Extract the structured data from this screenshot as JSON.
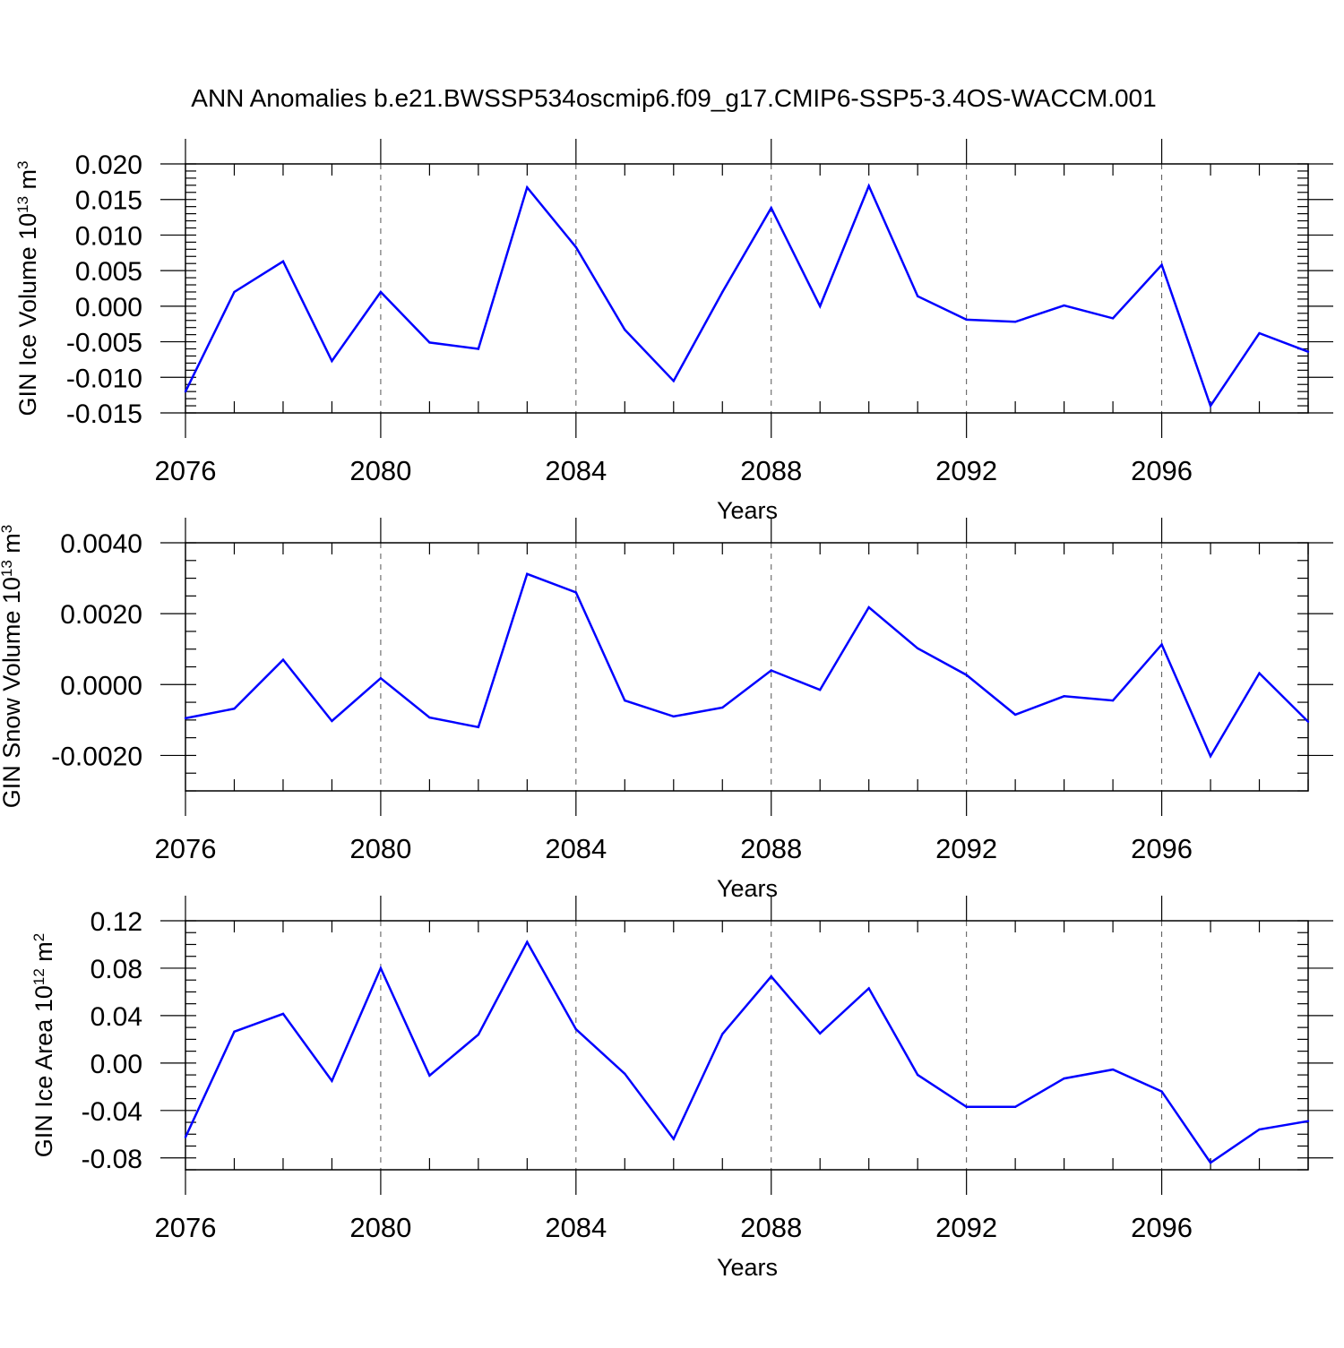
{
  "figure_title": "ANN Anomalies b.e21.BWSSP534oscmip6.f09_g17.CMIP6-SSP5-3.4OS-WACCM.001",
  "chart_data": [
    {
      "type": "line",
      "id": "ice-volume",
      "xlabel": "Years",
      "ylabel": "GIN Ice Volume 10",
      "ylabel_exp1": "13",
      "ylabel_unit": " m",
      "ylabel_exp2": "3",
      "xlim": [
        2076,
        2099
      ],
      "ylim": [
        -0.015,
        0.02
      ],
      "xticks": [
        2076,
        2080,
        2084,
        2088,
        2092,
        2096
      ],
      "xtick_labels": [
        "2076",
        "2080",
        "2084",
        "2088",
        "2092",
        "2096"
      ],
      "yticks": [
        -0.015,
        -0.01,
        -0.005,
        0.0,
        0.005,
        0.01,
        0.015,
        0.02
      ],
      "ytick_labels": [
        "-0.015",
        "-0.010",
        "-0.005",
        "0.000",
        "0.005",
        "0.010",
        "0.015",
        "0.020"
      ],
      "yminor_step": 0.001,
      "grid_x": true,
      "color": "#0000ff",
      "x": [
        2076,
        2077,
        2078,
        2079,
        2080,
        2081,
        2082,
        2083,
        2084,
        2085,
        2086,
        2087,
        2088,
        2089,
        2090,
        2091,
        2092,
        2093,
        2094,
        2095,
        2096,
        2097,
        2098,
        2099
      ],
      "values": [
        -0.012,
        0.002,
        0.0063,
        -0.0077,
        0.002,
        -0.0051,
        -0.006,
        0.0167,
        0.0083,
        -0.0033,
        -0.0105,
        0.002,
        0.0138,
        0.0,
        0.0169,
        0.0014,
        -0.0019,
        -0.0022,
        0.0001,
        -0.0017,
        0.0058,
        -0.014,
        -0.0038,
        -0.0064
      ]
    },
    {
      "type": "line",
      "id": "snow-volume",
      "xlabel": "Years",
      "ylabel": "GIN Snow Volume 10",
      "ylabel_exp1": "13",
      "ylabel_unit": " m",
      "ylabel_exp2": "3",
      "xlim": [
        2076,
        2099
      ],
      "ylim": [
        -0.003,
        0.004
      ],
      "xticks": [
        2076,
        2080,
        2084,
        2088,
        2092,
        2096
      ],
      "xtick_labels": [
        "2076",
        "2080",
        "2084",
        "2088",
        "2092",
        "2096"
      ],
      "yticks": [
        -0.002,
        0.0,
        0.002,
        0.004
      ],
      "ytick_labels": [
        "-0.0020",
        "0.0000",
        "0.0020",
        "0.0040"
      ],
      "yminor_step": 0.0005,
      "grid_x": true,
      "color": "#0000ff",
      "x": [
        2076,
        2077,
        2078,
        2079,
        2080,
        2081,
        2082,
        2083,
        2084,
        2085,
        2086,
        2087,
        2088,
        2089,
        2090,
        2091,
        2092,
        2093,
        2094,
        2095,
        2096,
        2097,
        2098,
        2099
      ],
      "values": [
        -0.00095,
        -0.00068,
        0.0007,
        -0.00103,
        0.00018,
        -0.00093,
        -0.0012,
        0.00312,
        0.0026,
        -0.00045,
        -0.0009,
        -0.00065,
        0.0004,
        -0.00015,
        0.00218,
        0.00102,
        0.00027,
        -0.00085,
        -0.00033,
        -0.00045,
        0.00113,
        -0.00202,
        0.00032,
        -0.00105
      ]
    },
    {
      "type": "line",
      "id": "ice-area",
      "xlabel": "Years",
      "ylabel": "GIN Ice Area 10",
      "ylabel_exp1": "12",
      "ylabel_unit": " m",
      "ylabel_exp2": "2",
      "xlim": [
        2076,
        2099
      ],
      "ylim": [
        -0.09,
        0.12
      ],
      "xticks": [
        2076,
        2080,
        2084,
        2088,
        2092,
        2096
      ],
      "xtick_labels": [
        "2076",
        "2080",
        "2084",
        "2088",
        "2092",
        "2096"
      ],
      "yticks": [
        -0.08,
        -0.04,
        0.0,
        0.04,
        0.08,
        0.12
      ],
      "ytick_labels": [
        "-0.08",
        "-0.04",
        "0.00",
        "0.04",
        "0.08",
        "0.12"
      ],
      "yminor_step": 0.01,
      "grid_x": true,
      "color": "#0000ff",
      "x": [
        2076,
        2077,
        2078,
        2079,
        2080,
        2081,
        2082,
        2083,
        2084,
        2085,
        2086,
        2087,
        2088,
        2089,
        2090,
        2091,
        2092,
        2093,
        2094,
        2095,
        2096,
        2097,
        2098,
        2099
      ],
      "values": [
        -0.0625,
        0.0265,
        0.0415,
        -0.015,
        0.08,
        -0.0105,
        0.024,
        0.102,
        0.0285,
        -0.009,
        -0.064,
        0.0245,
        0.073,
        0.025,
        0.063,
        -0.01,
        -0.037,
        -0.037,
        -0.013,
        -0.0055,
        -0.024,
        -0.084,
        -0.056,
        -0.049
      ]
    }
  ]
}
